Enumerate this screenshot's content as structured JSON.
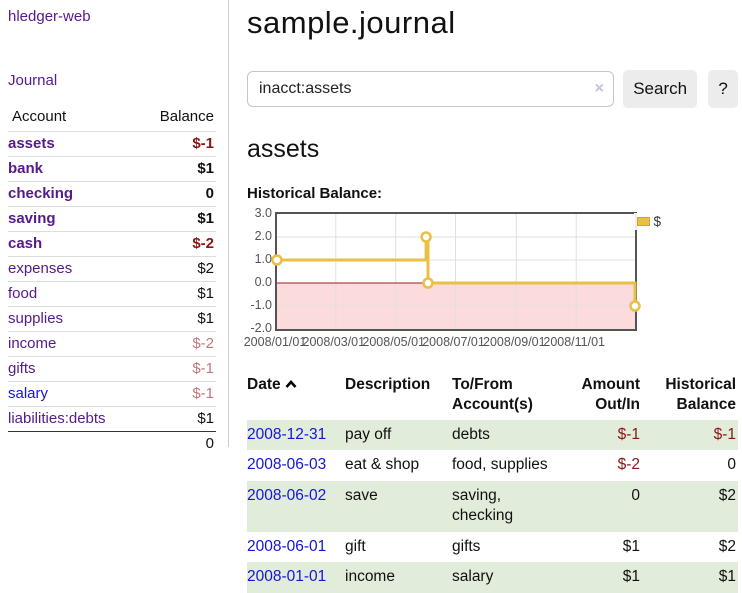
{
  "app": {
    "brand": "hledger-web"
  },
  "sidebar": {
    "journal_link": "Journal",
    "header": {
      "account": "Account",
      "balance": "Balance"
    },
    "accounts": [
      {
        "name": "assets",
        "balance": "$-1"
      },
      {
        "name": "bank",
        "balance": "$1"
      },
      {
        "name": "checking",
        "balance": "0"
      },
      {
        "name": "saving",
        "balance": "$1"
      },
      {
        "name": "cash",
        "balance": "$-2"
      },
      {
        "name": "expenses",
        "balance": "$2"
      },
      {
        "name": "food",
        "balance": "$1"
      },
      {
        "name": "supplies",
        "balance": "$1"
      },
      {
        "name": "income",
        "balance": "$-2"
      },
      {
        "name": "gifts",
        "balance": "$-1"
      },
      {
        "name": "salary",
        "balance": "$-1"
      },
      {
        "name": "liabilities:debts",
        "balance": "$1"
      }
    ],
    "total": "0"
  },
  "main": {
    "title": "sample.journal",
    "account_heading": "assets",
    "chart_title": "Historical Balance:"
  },
  "search": {
    "value": "inacct:assets",
    "clear_icon": "×",
    "search_button": "Search",
    "help_button": "?"
  },
  "chart_data": {
    "type": "line",
    "step": true,
    "series": [
      {
        "name": "$",
        "points": [
          [
            "2008-01-01",
            1
          ],
          [
            "2008-06-01",
            2
          ],
          [
            "2008-06-03",
            0
          ],
          [
            "2008-12-31",
            -1
          ]
        ]
      }
    ],
    "xlim": [
      "2008-01-01",
      "2008-12-31"
    ],
    "ylim": [
      -2,
      3
    ],
    "yticks": [
      3,
      2,
      1,
      0,
      -1,
      -2
    ],
    "xticks": [
      {
        "date": "2008-01-01",
        "label": "2008/01/01"
      },
      {
        "date": "2008-03-01",
        "label": "2008/03/01"
      },
      {
        "date": "2008-05-01",
        "label": "2008/05/01"
      },
      {
        "date": "2008-07-01",
        "label": "2008/07/01"
      },
      {
        "date": "2008-09-01",
        "label": "2008/09/01"
      },
      {
        "date": "2008-11-01",
        "label": "2008/11/01"
      }
    ],
    "legend": {
      "label": "$",
      "position": "top-right"
    },
    "colors": {
      "line": "#e9c045",
      "marker_fill": "#ffffff",
      "negative_region": "#fbdbdb",
      "zero_line": "#9b1c1c",
      "grid": "#e0e0e0",
      "border": "#545454"
    }
  },
  "register": {
    "headers": {
      "date": "Date",
      "description": "Description",
      "accounts": "To/From Account(s)",
      "amount": "Amount Out/In",
      "balance": "Historical Balance"
    },
    "rows": [
      {
        "date": "2008-12-31",
        "description": "pay off",
        "accounts": "debts",
        "amount": "$-1",
        "balance": "$-1"
      },
      {
        "date": "2008-06-03",
        "description": "eat & shop",
        "accounts": "food, supplies",
        "amount": "$-2",
        "balance": "0"
      },
      {
        "date": "2008-06-02",
        "description": "save",
        "accounts": "saving, checking",
        "amount": "0",
        "balance": "$2"
      },
      {
        "date": "2008-06-01",
        "description": "gift",
        "accounts": "gifts",
        "amount": "$1",
        "balance": "$2"
      },
      {
        "date": "2008-01-01",
        "description": "income",
        "accounts": "salary",
        "amount": "$1",
        "balance": "$1"
      }
    ]
  },
  "colors": {
    "link_purple": "#551a8b",
    "link_blue": "#1414dd",
    "negative_dark": "#8b1414",
    "negative_soft": "#c17878",
    "row_green": "#e1ecda"
  }
}
